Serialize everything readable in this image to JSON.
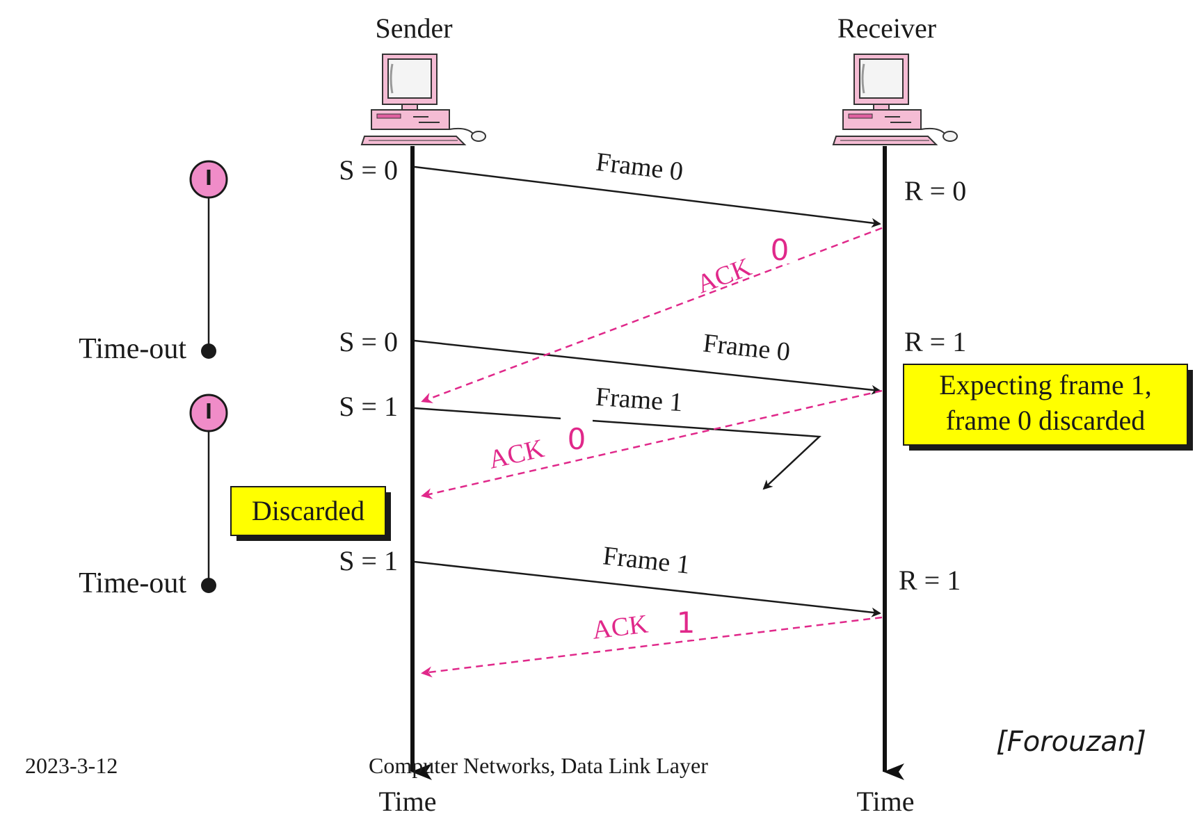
{
  "sender": {
    "title": "Sender"
  },
  "receiver": {
    "title": "Receiver"
  },
  "time_label": "Time",
  "sender_states": [
    "S = 0",
    "S = 0",
    "S = 1",
    "S = 1"
  ],
  "receiver_states": [
    "R = 0",
    "R = 1",
    "R = 1"
  ],
  "frames": [
    {
      "label": "Frame 0",
      "outcome": "delivered"
    },
    {
      "label": "Frame 0",
      "outcome": "delivered"
    },
    {
      "label": "Frame 1",
      "outcome": "lost"
    },
    {
      "label": "Frame 1",
      "outcome": "delivered"
    }
  ],
  "acks": [
    {
      "label": "ACK",
      "number": "0"
    },
    {
      "label": "ACK",
      "number": "0"
    },
    {
      "label": "ACK",
      "number": "1"
    }
  ],
  "timeout_label": "Time-out",
  "callouts": {
    "expecting_line1": "Expecting frame 1,",
    "expecting_line2": "frame 0 discarded",
    "discarded": "Discarded"
  },
  "footer": {
    "date": "2023-3-12",
    "course": "Computer Networks, Data Link Layer",
    "source": "[Forouzan]"
  },
  "colors": {
    "ack": "#e0288a",
    "callout_fill": "#ffff00",
    "timer_fill": "#f08cc8",
    "computer_body": "#f5bcd4"
  }
}
